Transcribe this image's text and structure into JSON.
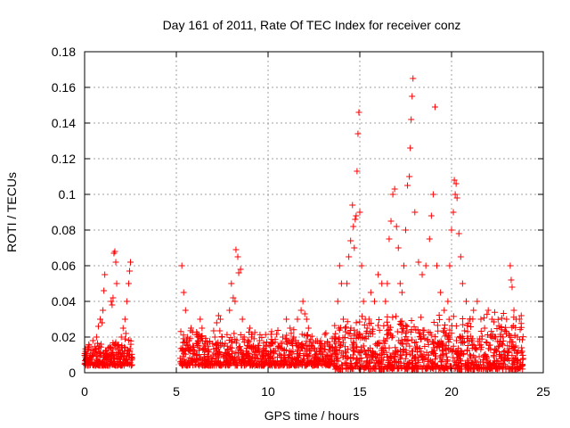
{
  "chart_data": {
    "type": "scatter",
    "title": "Day 161 of 2011, Rate Of TEC Index for receiver conz",
    "xlabel": "GPS time / hours",
    "ylabel": "ROTI / TECUs",
    "xlim": [
      0,
      25
    ],
    "ylim": [
      0,
      0.18
    ],
    "x_ticks": [
      0,
      5,
      10,
      15,
      20,
      25
    ],
    "x_tick_labels": [
      "0",
      "5",
      "10",
      "15",
      "20",
      "25"
    ],
    "y_ticks": [
      0,
      0.02,
      0.04,
      0.06,
      0.08,
      0.1,
      0.12,
      0.14,
      0.16,
      0.18
    ],
    "y_tick_labels": [
      "0",
      "0.02",
      "0.04",
      "0.06",
      "0.08",
      "0.1",
      "0.12",
      "0.14",
      "0.16",
      "0.18"
    ],
    "grid": true,
    "marker": "+",
    "marker_color": "#ff0000",
    "series": [
      {
        "name": "ROTI",
        "points": [
          [
            0.05,
            0.012
          ],
          [
            0.15,
            0.008
          ],
          [
            0.25,
            0.015
          ],
          [
            0.35,
            0.006
          ],
          [
            0.45,
            0.018
          ],
          [
            0.55,
            0.011
          ],
          [
            0.65,
            0.02
          ],
          [
            0.75,
            0.026
          ],
          [
            0.85,
            0.03
          ],
          [
            0.95,
            0.028
          ],
          [
            1.0,
            0.035
          ],
          [
            1.05,
            0.046
          ],
          [
            1.1,
            0.055
          ],
          [
            1.15,
            0.012
          ],
          [
            1.25,
            0.009
          ],
          [
            1.35,
            0.014
          ],
          [
            1.45,
            0.04
          ],
          [
            1.5,
            0.038
          ],
          [
            1.55,
            0.042
          ],
          [
            1.6,
            0.067
          ],
          [
            1.65,
            0.068
          ],
          [
            1.7,
            0.062
          ],
          [
            1.75,
            0.05
          ],
          [
            1.8,
            0.015
          ],
          [
            1.9,
            0.013
          ],
          [
            2.0,
            0.02
          ],
          [
            2.1,
            0.025
          ],
          [
            2.2,
            0.03
          ],
          [
            2.3,
            0.04
          ],
          [
            2.4,
            0.05
          ],
          [
            2.45,
            0.057
          ],
          [
            2.5,
            0.062
          ],
          [
            0.3,
            0.01
          ],
          [
            0.6,
            0.013
          ],
          [
            0.9,
            0.016
          ],
          [
            1.2,
            0.011
          ],
          [
            1.4,
            0.009
          ],
          [
            1.7,
            0.017
          ],
          [
            2.05,
            0.014
          ],
          [
            2.25,
            0.022
          ],
          [
            5.3,
            0.06
          ],
          [
            5.4,
            0.045
          ],
          [
            5.5,
            0.035
          ],
          [
            5.6,
            0.02
          ],
          [
            5.7,
            0.018
          ],
          [
            5.8,
            0.025
          ],
          [
            5.9,
            0.015
          ],
          [
            6.0,
            0.012
          ],
          [
            6.1,
            0.01
          ],
          [
            6.2,
            0.018
          ],
          [
            6.3,
            0.03
          ],
          [
            6.4,
            0.025
          ],
          [
            6.5,
            0.015
          ],
          [
            6.7,
            0.012
          ],
          [
            6.9,
            0.008
          ],
          [
            7.0,
            0.01
          ],
          [
            7.1,
            0.02
          ],
          [
            7.2,
            0.028
          ],
          [
            7.3,
            0.032
          ],
          [
            7.4,
            0.03
          ],
          [
            7.5,
            0.02
          ],
          [
            7.6,
            0.015
          ],
          [
            7.7,
            0.01
          ],
          [
            7.8,
            0.012
          ],
          [
            7.9,
            0.035
          ],
          [
            8.0,
            0.05
          ],
          [
            8.1,
            0.042
          ],
          [
            8.2,
            0.04
          ],
          [
            8.25,
            0.069
          ],
          [
            8.35,
            0.065
          ],
          [
            8.4,
            0.056
          ],
          [
            8.5,
            0.058
          ],
          [
            8.6,
            0.03
          ],
          [
            8.7,
            0.02
          ],
          [
            8.8,
            0.012
          ],
          [
            8.9,
            0.015
          ],
          [
            9.0,
            0.025
          ],
          [
            9.1,
            0.02
          ],
          [
            9.2,
            0.015
          ],
          [
            9.3,
            0.008
          ],
          [
            9.4,
            0.01
          ],
          [
            9.5,
            0.012
          ],
          [
            9.6,
            0.008
          ],
          [
            9.7,
            0.01
          ],
          [
            9.8,
            0.007
          ],
          [
            9.9,
            0.012
          ],
          [
            10.0,
            0.01
          ],
          [
            10.2,
            0.008
          ],
          [
            10.4,
            0.012
          ],
          [
            10.6,
            0.015
          ],
          [
            10.8,
            0.02
          ],
          [
            11.0,
            0.03
          ],
          [
            11.2,
            0.025
          ],
          [
            11.4,
            0.02
          ],
          [
            11.5,
            0.018
          ],
          [
            11.6,
            0.03
          ],
          [
            11.8,
            0.035
          ],
          [
            11.9,
            0.04
          ],
          [
            12.0,
            0.033
          ],
          [
            12.1,
            0.03
          ],
          [
            12.2,
            0.025
          ],
          [
            12.4,
            0.015
          ],
          [
            12.6,
            0.01
          ],
          [
            12.8,
            0.012
          ],
          [
            13.0,
            0.015
          ],
          [
            13.2,
            0.01
          ],
          [
            13.4,
            0.012
          ],
          [
            13.6,
            0.02
          ],
          [
            13.8,
            0.04
          ],
          [
            13.9,
            0.06
          ],
          [
            14.0,
            0.05
          ],
          [
            14.1,
            0.03
          ],
          [
            14.2,
            0.025
          ],
          [
            14.3,
            0.05
          ],
          [
            14.4,
            0.065
          ],
          [
            14.5,
            0.074
          ],
          [
            14.6,
            0.094
          ],
          [
            14.65,
            0.082
          ],
          [
            14.7,
            0.07
          ],
          [
            14.75,
            0.086
          ],
          [
            14.8,
            0.088
          ],
          [
            14.85,
            0.113
          ],
          [
            14.9,
            0.134
          ],
          [
            14.95,
            0.146
          ],
          [
            15.0,
            0.09
          ],
          [
            15.1,
            0.06
          ],
          [
            15.2,
            0.04
          ],
          [
            15.3,
            0.03
          ],
          [
            15.4,
            0.025
          ],
          [
            15.5,
            0.03
          ],
          [
            15.6,
            0.045
          ],
          [
            15.8,
            0.04
          ],
          [
            16.0,
            0.055
          ],
          [
            16.2,
            0.05
          ],
          [
            16.4,
            0.04
          ],
          [
            16.5,
            0.05
          ],
          [
            16.6,
            0.075
          ],
          [
            16.7,
            0.085
          ],
          [
            16.8,
            0.1
          ],
          [
            16.9,
            0.103
          ],
          [
            17.0,
            0.082
          ],
          [
            17.1,
            0.07
          ],
          [
            17.2,
            0.05
          ],
          [
            17.3,
            0.045
          ],
          [
            17.4,
            0.06
          ],
          [
            17.5,
            0.08
          ],
          [
            17.6,
            0.105
          ],
          [
            17.7,
            0.11
          ],
          [
            17.75,
            0.126
          ],
          [
            17.8,
            0.142
          ],
          [
            17.85,
            0.155
          ],
          [
            17.9,
            0.165
          ],
          [
            18.0,
            0.09
          ],
          [
            18.2,
            0.062
          ],
          [
            18.4,
            0.055
          ],
          [
            18.6,
            0.06
          ],
          [
            18.8,
            0.075
          ],
          [
            18.9,
            0.088
          ],
          [
            19.0,
            0.1
          ],
          [
            19.1,
            0.149
          ],
          [
            19.2,
            0.06
          ],
          [
            19.4,
            0.045
          ],
          [
            19.6,
            0.035
          ],
          [
            19.8,
            0.04
          ],
          [
            19.9,
            0.06
          ],
          [
            20.0,
            0.08
          ],
          [
            20.1,
            0.09
          ],
          [
            20.15,
            0.108
          ],
          [
            20.2,
            0.1
          ],
          [
            20.25,
            0.106
          ],
          [
            20.3,
            0.098
          ],
          [
            20.4,
            0.078
          ],
          [
            20.5,
            0.065
          ],
          [
            20.6,
            0.05
          ],
          [
            20.8,
            0.04
          ],
          [
            21.0,
            0.03
          ],
          [
            21.2,
            0.035
          ],
          [
            21.4,
            0.04
          ],
          [
            21.6,
            0.03
          ],
          [
            21.8,
            0.025
          ],
          [
            22.0,
            0.035
          ],
          [
            22.2,
            0.03
          ],
          [
            22.4,
            0.02
          ],
          [
            22.6,
            0.015
          ],
          [
            22.8,
            0.02
          ],
          [
            23.0,
            0.03
          ],
          [
            23.2,
            0.06
          ],
          [
            23.25,
            0.052
          ],
          [
            23.3,
            0.048
          ],
          [
            23.4,
            0.035
          ],
          [
            23.5,
            0.015
          ],
          [
            23.6,
            0.02
          ],
          [
            23.7,
            0.03
          ],
          [
            23.8,
            0.032
          ],
          [
            23.85,
            0.012
          ],
          [
            23.9,
            0.008
          ],
          [
            14.2,
            0.012
          ],
          [
            15.2,
            0.015
          ],
          [
            16.3,
            0.018
          ],
          [
            17.2,
            0.01
          ],
          [
            18.3,
            0.02
          ],
          [
            19.3,
            0.016
          ],
          [
            20.5,
            0.01
          ],
          [
            21.3,
            0.014
          ],
          [
            22.3,
            0.009
          ],
          [
            23.1,
            0.012
          ],
          [
            13.7,
            0.008
          ],
          [
            16.8,
            0.011
          ],
          [
            19.7,
            0.013
          ],
          [
            22.9,
            0.007
          ]
        ],
        "noise_bands": [
          [
            0.0,
            2.6,
            0.004,
            0.02
          ],
          [
            5.2,
            13.6,
            0.004,
            0.025
          ],
          [
            13.6,
            23.9,
            0.002,
            0.035
          ]
        ]
      }
    ]
  }
}
